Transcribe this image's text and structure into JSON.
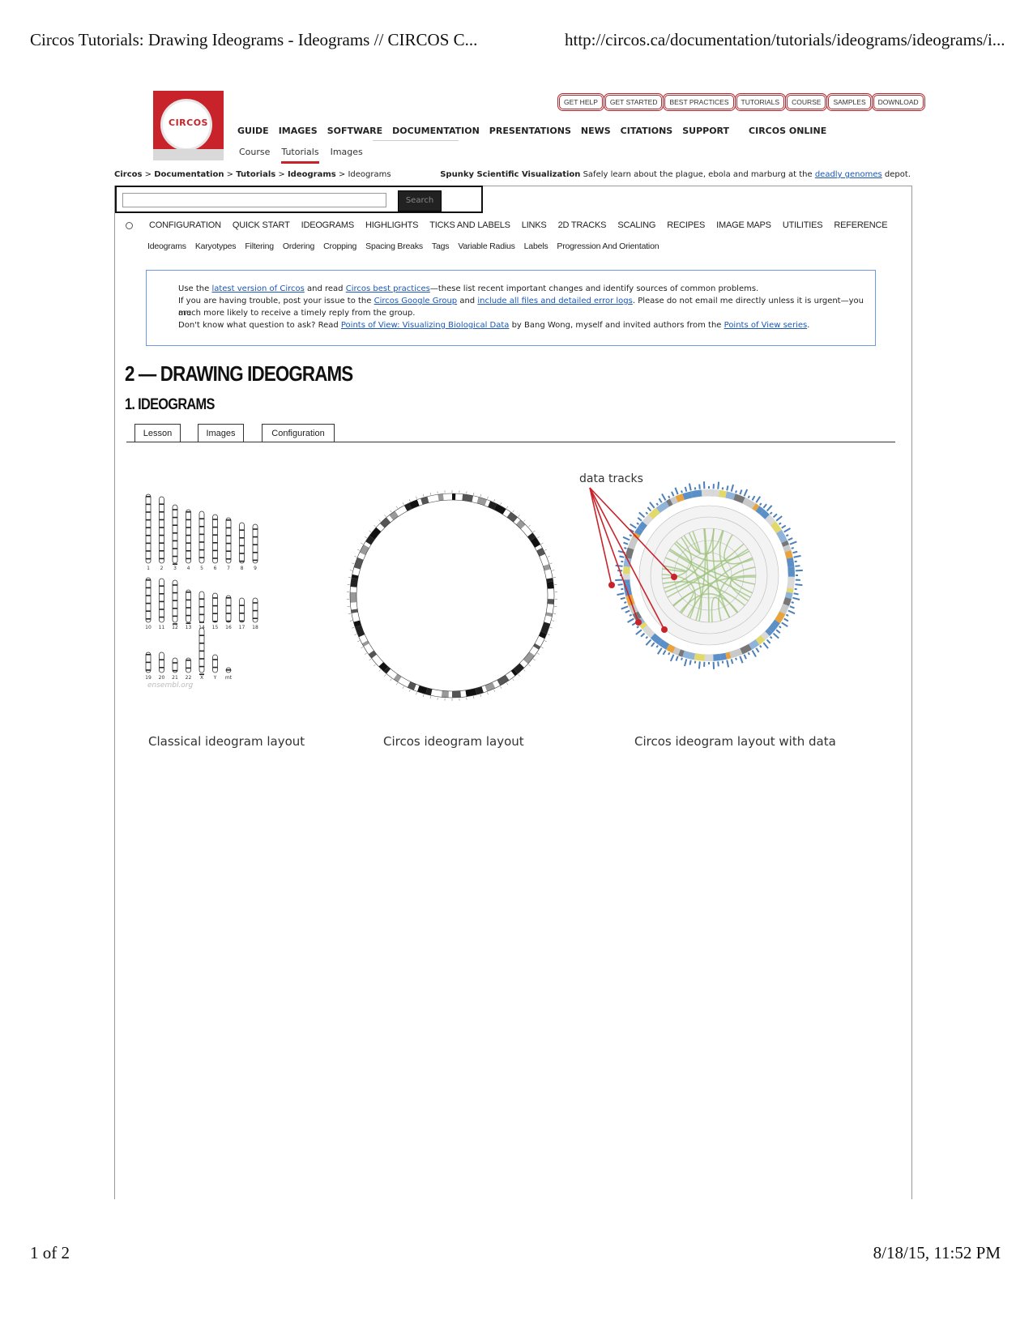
{
  "print_header": {
    "title": "Circos Tutorials: Drawing Ideograms - Ideograms // CIRCOS C...",
    "url": "http://circos.ca/documentation/tutorials/ideograms/ideograms/i..."
  },
  "print_footer": {
    "page": "1 of 2",
    "datetime": "8/18/15, 11:52 PM"
  },
  "logo": {
    "text": "CIRCOS"
  },
  "top_buttons": [
    "GET HELP",
    "GET STARTED",
    "BEST PRACTICES",
    "TUTORIALS",
    "COURSE",
    "SAMPLES",
    "DOWNLOAD"
  ],
  "main_nav": [
    "GUIDE",
    "IMAGES",
    "SOFTWARE",
    "DOCUMENTATION",
    "PRESENTATIONS",
    "NEWS",
    "CITATIONS",
    "SUPPORT",
    "CIRCOS ONLINE"
  ],
  "sub_nav": {
    "items": [
      "Course",
      "Tutorials",
      "Images"
    ],
    "active": "Tutorials"
  },
  "breadcrumb": {
    "items": [
      "Circos",
      "Documentation",
      "Tutorials",
      "Ideograms"
    ],
    "current": "Ideograms",
    "sep": " > "
  },
  "tagline": {
    "bold": "Spunky Scientific Visualization",
    "text": " Safely learn about the plague, ebola and marburg at the ",
    "link": "deadly genomes",
    "end": " depot."
  },
  "search": {
    "value": "",
    "button": "Search"
  },
  "category_nav": [
    "CONFIGURATION",
    "QUICK START",
    "IDEOGRAMS",
    "HIGHLIGHTS",
    "TICKS AND LABELS",
    "LINKS",
    "2D TRACKS",
    "SCALING",
    "RECIPES",
    "IMAGE MAPS",
    "UTILITIES",
    "REFERENCE"
  ],
  "sub_categories": [
    "Ideograms",
    "Karyotypes",
    "Filtering",
    "Ordering",
    "Cropping",
    "Spacing Breaks",
    "Tags",
    "Variable Radius",
    "Labels",
    "Progression And Orientation"
  ],
  "notice": {
    "l1a": "Use the ",
    "l1_link1": "latest version of Circos",
    "l1b": " and read ",
    "l1_link2": "Circos best practices",
    "l1c": "—these list recent important changes and identify sources of common problems.",
    "l2a": "If you are having trouble, post your issue to the ",
    "l2_link1": "Circos Google Group",
    "l2b": " and ",
    "l2_link2": "include all files and detailed error logs",
    "l2c": ". Please do not email me directly unless it is urgent—you are",
    "l3": "much more likely to receive a timely reply from the group.",
    "l4a": "Don't know what question to ask? Read ",
    "l4_link1": "Points of View: Visualizing Biological Data",
    "l4b": " by Bang Wong, myself and invited authors from the ",
    "l4_link2": "Points of View series",
    "l4c": "."
  },
  "page_title": "2 — DRAWING IDEOGRAMS",
  "section_title": "1. IDEOGRAMS",
  "tabs": [
    "Lesson",
    "Images",
    "Configuration"
  ],
  "figure": {
    "captions": [
      "Classical ideogram layout",
      "Circos ideogram layout",
      "Circos ideogram layout with data"
    ],
    "watermark": "ensembl.org",
    "annotation": "data tracks",
    "chromosome_labels": [
      "1",
      "2",
      "3",
      "4",
      "5",
      "6",
      "7",
      "8",
      "9",
      "10",
      "11",
      "12",
      "13",
      "14",
      "15",
      "16",
      "17",
      "18",
      "19",
      "20",
      "21",
      "22",
      "X",
      "Y",
      "mt"
    ]
  }
}
